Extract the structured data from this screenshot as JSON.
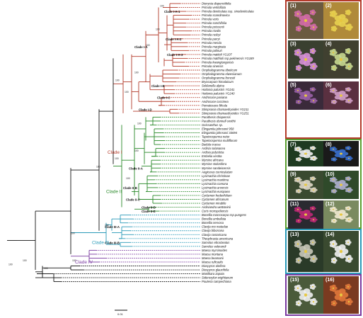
{
  "tree": {
    "tips": [
      "Dionysia diapensiifolia",
      "Primula verticillata",
      "Primula denticulata ssp. sinodenticulata",
      "Primula scandinavica",
      "Primula veris",
      "Primula sonchifolia",
      "Primula poissonii",
      "Primula nivalis",
      "Primula rusbyi",
      "Primula parryi",
      "Primula mesda",
      "Primula marginata",
      "Primula palinuri",
      "Primula mattioli YG107",
      "Primula matthioli ssp.pekinensis YG189",
      "Primula kwangtungensis",
      "Primula sinensis",
      "Omphalogramma tibeticum",
      "Omphalogramma elwesiianum",
      "Omphalogramma forrestii",
      "Bryocarpum himalaicum",
      "Soldanella alpina",
      "Hottonia palustris YG241",
      "Hottonia palustris YG240",
      "Androsace paxiana",
      "Androsace coccinea",
      "Pomatosace filicula",
      "Stimpsonia chamaedryoides YG211",
      "Stimpsonia chamaedryoides YG251",
      "Parathesis chiapensis",
      "Parathesis donnell-smithii",
      "Geissanthus sp.",
      "Elingamita johnsonii 958",
      "Elingamita johnsonii 33694",
      "Tapeinosperma netor",
      "Tapeinosperma multiflorum",
      "Badula crassa",
      "Ardisia solanacea",
      "Ardisia polysticta",
      "Embelia vestita",
      "Myrsine africana",
      "Myrsine stolonifera",
      "Myrsine sandwicensis",
      "Aegiceras corniculatum",
      "Lysimachia christinae",
      "Lysimachia maritima",
      "Lysimachia coreana",
      "Lysimachia arvensis",
      "Lysimachia europaea",
      "Cyclamen hederifolium",
      "Cyclamen africanum",
      "Cyclamen mirabile",
      "Ardisiandra wettsteinii",
      "Coris monspeliensis",
      "Bonellia macrocarpa ssp.pungens",
      "Bonellia umbellata",
      "Bonellia nervosa",
      "Clavija-mo matudae",
      "Clavija biborrana",
      "Clavija costaricana",
      "Theophrasta americana",
      "Samolus ebracteatus",
      "Samolus valerandi",
      "Maesa myrsinoides",
      "Maesa montana",
      "Maesa beamanii",
      "Maesa ruficaulis",
      "Diospyros oleifera",
      "Diospyros glaucifolia",
      "Manilkara zapota",
      "Sideroxylon wightianum",
      "Pouteria campechiana"
    ],
    "subclades": [
      "Clade I-A-1",
      "Clade I-A-2",
      "Clade I-A-3",
      "Clade I-A",
      "Clade I-B",
      "Clade I-C",
      "Clade I-D",
      "Clade II-A",
      "Clade II-B",
      "Clade II-C",
      "Clade II-D",
      "Clade II-E",
      "Clade III-A",
      "Clade III-B"
    ],
    "major_clades": [
      {
        "label": "Clade I",
        "color": "#b33a2a"
      },
      {
        "label": "Clade II",
        "color": "#2a8a2a"
      },
      {
        "label": "Clade III",
        "color": "#2a9ab8"
      },
      {
        "label": "Clade IV",
        "color": "#7a3aa0"
      }
    ],
    "support_label": "100",
    "scale_label": "0.01"
  },
  "photos": [
    {
      "num": "(1)"
    },
    {
      "num": "(2)"
    },
    {
      "num": "(3)"
    },
    {
      "num": "(4)"
    },
    {
      "num": "(5)"
    },
    {
      "num": "(6)"
    },
    {
      "num": "(7)"
    },
    {
      "num": "(8)"
    },
    {
      "num": "(9)"
    },
    {
      "num": "(10)"
    },
    {
      "num": "(11)"
    },
    {
      "num": "(12)"
    },
    {
      "num": "(13)"
    },
    {
      "num": "(14)"
    },
    {
      "num": "(15)"
    },
    {
      "num": "(16)"
    }
  ],
  "colors": {
    "clade_I": "#b33a2a",
    "clade_II": "#2a8a2a",
    "clade_III": "#2a9ab8",
    "clade_IV": "#7a3aa0",
    "outgroup": "#111111"
  }
}
